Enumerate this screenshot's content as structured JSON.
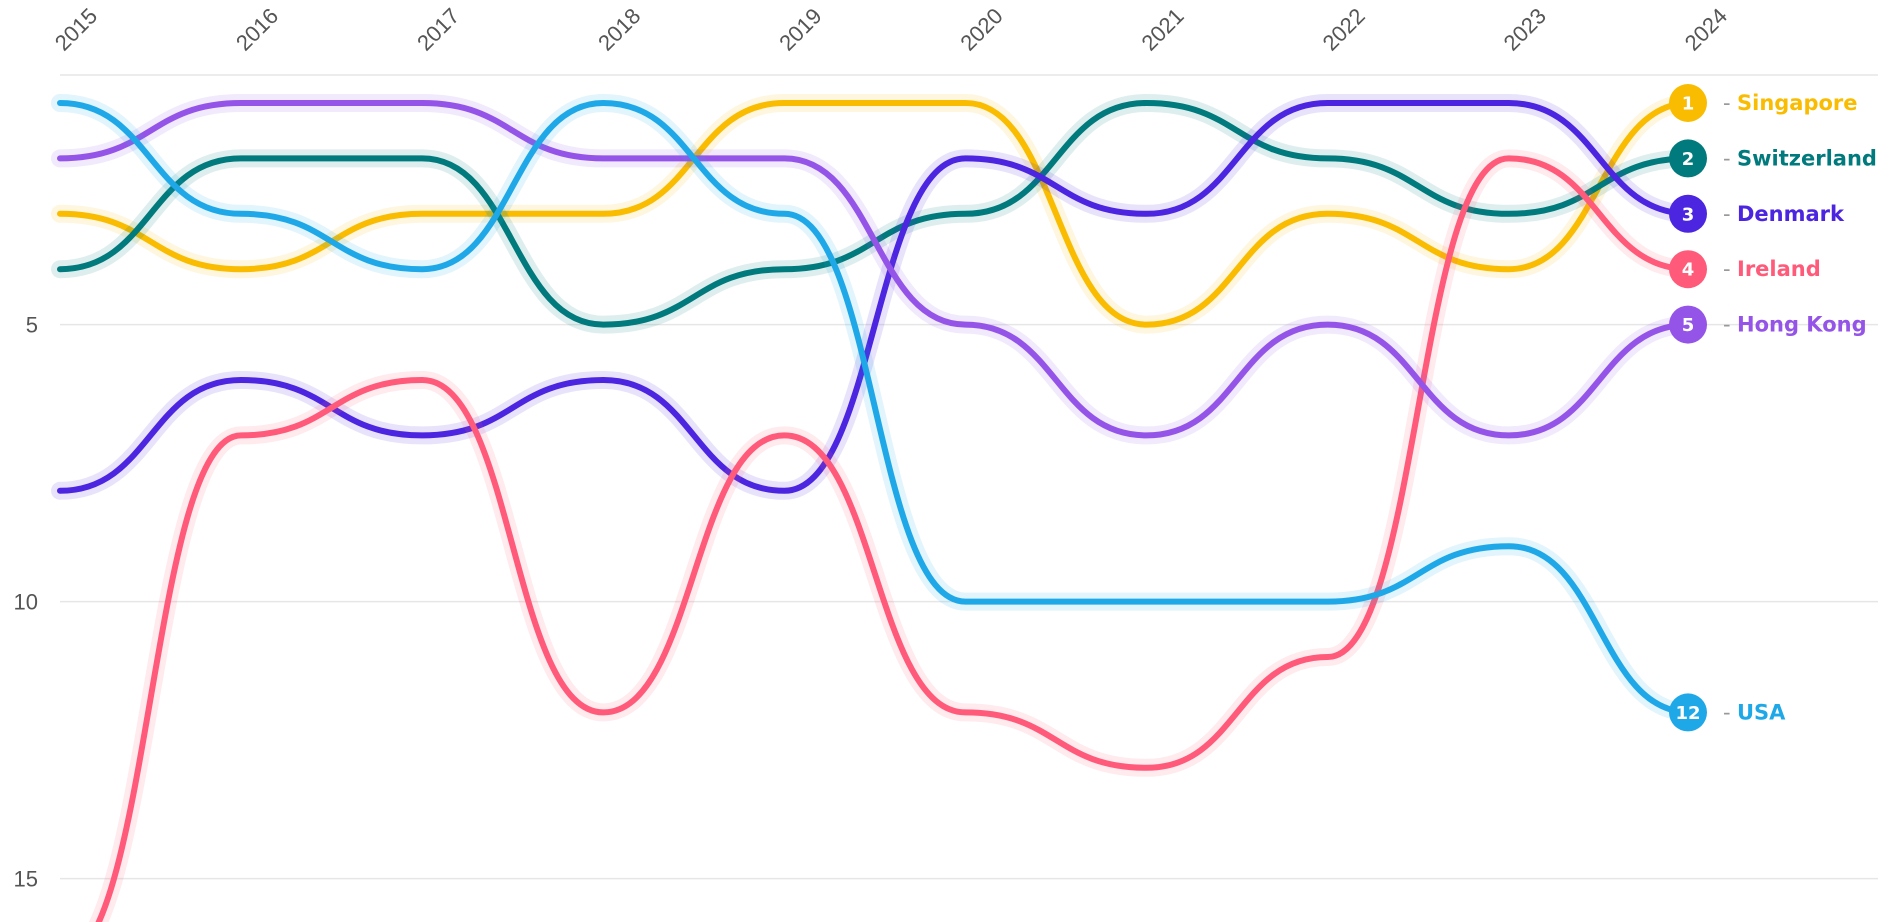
{
  "chart_data": {
    "type": "line",
    "title": "",
    "xlabel": "",
    "ylabel": "",
    "x": [
      "2015",
      "2016",
      "2017",
      "2018",
      "2019",
      "2020",
      "2021",
      "2022",
      "2023",
      "2024"
    ],
    "y_ticks": [
      "5",
      "10",
      "15"
    ],
    "ylim": [
      16,
      0.5
    ],
    "y_inverted": true,
    "grid": "horizontal",
    "legend": "end-of-line labels, right",
    "series": [
      {
        "name": "Singapore",
        "rank": "1",
        "color": "#F9BC00",
        "values": [
          3,
          4,
          3,
          3,
          1,
          1,
          5,
          3,
          4,
          1
        ]
      },
      {
        "name": "Switzerland",
        "rank": "2",
        "color": "#007A7C",
        "values": [
          4,
          2,
          2,
          5,
          4,
          3,
          1,
          2,
          3,
          2
        ]
      },
      {
        "name": "Denmark",
        "rank": "3",
        "color": "#4B25E0",
        "values": [
          8,
          6,
          7,
          6,
          8,
          2,
          3,
          1,
          1,
          3
        ]
      },
      {
        "name": "Ireland",
        "rank": "4",
        "color": "#FF5A79",
        "values": [
          16.5,
          7,
          6,
          12,
          7,
          12,
          13,
          11,
          2,
          4
        ]
      },
      {
        "name": "Hong Kong",
        "rank": "5",
        "color": "#9554E8",
        "values": [
          2,
          1,
          1,
          2,
          2,
          5,
          7,
          5,
          7,
          5
        ]
      },
      {
        "name": "USA",
        "rank": "12",
        "color": "#1FA8E8",
        "values": [
          1,
          3,
          4,
          1,
          3,
          10,
          10,
          10,
          9,
          12
        ]
      }
    ]
  }
}
